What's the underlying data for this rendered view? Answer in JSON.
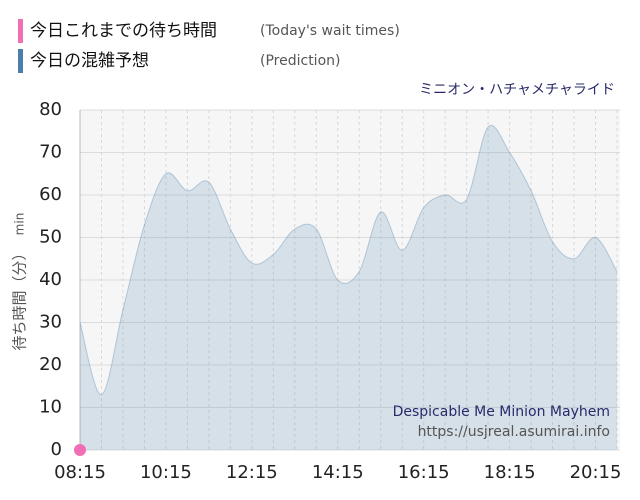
{
  "chart_data": {
    "type": "area",
    "title": "ミニオン・ハチャメチャライド",
    "ylabel": "待ち時間（分）",
    "yunit": "min",
    "annotations": [
      "Despicable Me Minion Mayhem",
      "https://usjreal.asumirai.info"
    ],
    "xlim": [
      "08:15",
      "20:45"
    ],
    "xticks": [
      "08:15",
      "10:15",
      "12:15",
      "14:15",
      "16:15",
      "18:15",
      "20:15"
    ],
    "ylim": [
      0,
      80
    ],
    "yticks": [
      0,
      10,
      20,
      30,
      40,
      50,
      60,
      70,
      80
    ],
    "grid": true,
    "series": [
      {
        "name": "今日これまでの待ち時間",
        "note": "(Today's wait times)",
        "color": "#f06fb4",
        "x": [
          "08:15"
        ],
        "values": [
          0
        ]
      },
      {
        "name": "今日の混雑予想",
        "note": "(Prediction)",
        "color": "#4a7fab",
        "x": [
          "08:15",
          "08:45",
          "09:15",
          "09:45",
          "10:15",
          "10:45",
          "11:15",
          "11:45",
          "12:15",
          "12:45",
          "13:15",
          "13:45",
          "14:15",
          "14:45",
          "15:15",
          "15:45",
          "16:15",
          "16:45",
          "17:15",
          "17:45",
          "18:15",
          "18:45",
          "19:15",
          "19:45",
          "20:15",
          "20:45"
        ],
        "values": [
          30,
          13,
          33,
          53,
          65,
          61,
          63,
          52,
          44,
          46,
          52,
          52,
          40,
          42,
          56,
          47,
          57,
          60,
          59,
          76,
          70,
          61,
          49,
          45,
          50,
          42
        ]
      }
    ]
  }
}
